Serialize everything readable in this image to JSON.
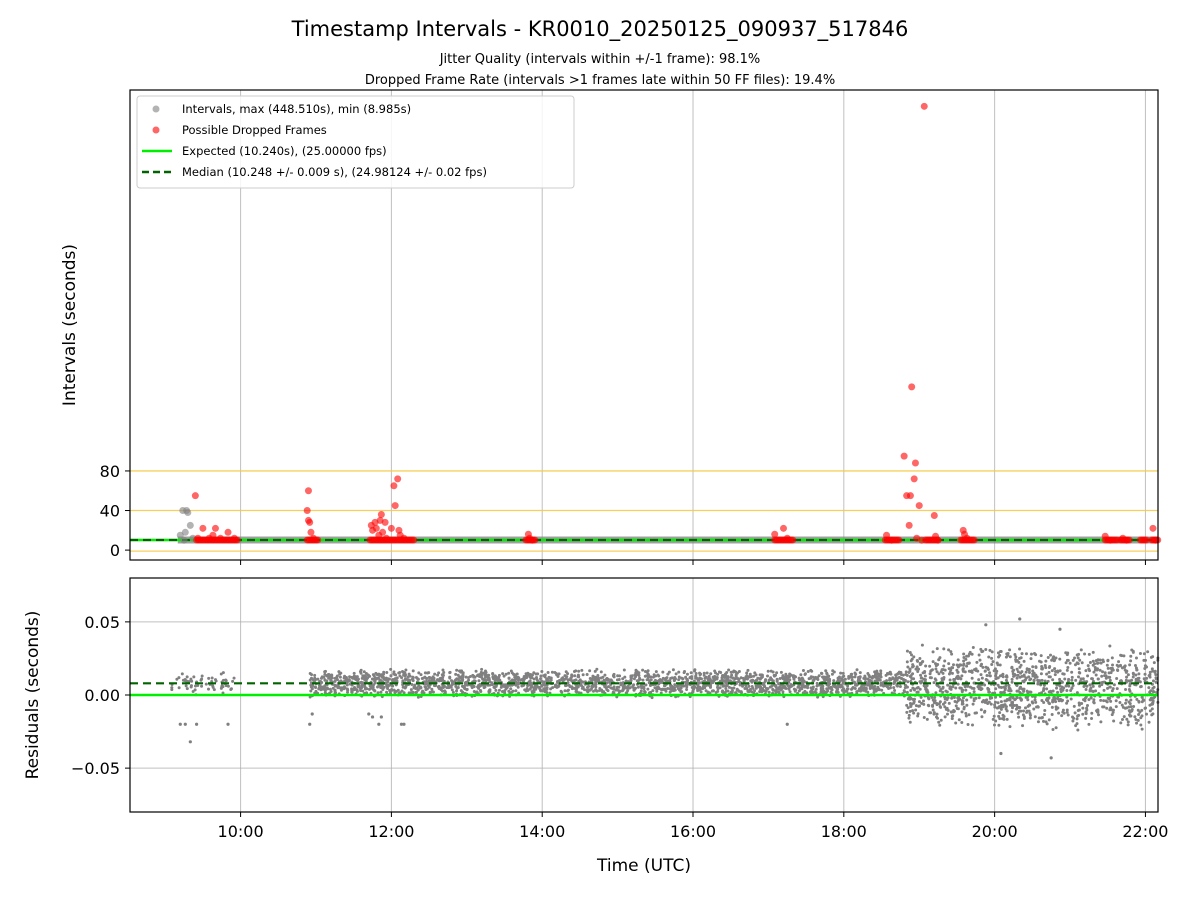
{
  "chart_data": {
    "type": "scatter",
    "title": "Timestamp Intervals - KR0010_20250125_090937_517846",
    "subtitle_lines": [
      "Jitter Quality (intervals within +/-1 frame): 98.1%",
      "Dropped Frame Rate (intervals >1 frames late within 50 FF files): 19.4%"
    ],
    "xlabel": "Time (UTC)",
    "xlim": [
      "08:32",
      "22:10"
    ],
    "xticks": [
      "10:00",
      "12:00",
      "14:00",
      "16:00",
      "18:00",
      "20:00",
      "22:00"
    ],
    "colors": {
      "intervals": "#808080",
      "dropped": "#ff0000",
      "expected": "#00ee00",
      "median": "#006400",
      "threshold": "#f5c842",
      "grid": "#b0b0b0"
    },
    "panels": [
      {
        "id": "intervals",
        "ylabel": "Intervals (seconds)",
        "ylim": [
          -10,
          465
        ],
        "yticks": [
          "0",
          "40",
          "80"
        ],
        "threshold_lines_y": [
          -1,
          40,
          80
        ],
        "expected_y": 10.24,
        "median_y": 10.248,
        "legend_position": "upper-left",
        "legend": [
          {
            "label": "Intervals, max (448.510s), min (8.985s)",
            "marker": "gray-dot"
          },
          {
            "label": "Possible Dropped Frames",
            "marker": "red-dot"
          },
          {
            "label": "Expected (10.240s), (25.00000 fps)",
            "marker": "green-line"
          },
          {
            "label": "Median (10.248 +/- 0.009 s), (24.98124 +/- 0.02 fps)",
            "marker": "dark-green-dashed"
          }
        ],
        "series": [
          {
            "name": "Intervals, max (448.510s), min (8.985s)",
            "points": [
              [
                "09:12",
                15
              ],
              [
                "09:14",
                40
              ],
              [
                "09:15",
                10
              ],
              [
                "09:16",
                18
              ],
              [
                "09:17",
                40
              ],
              [
                "09:18",
                38
              ],
              [
                "09:20",
                25
              ],
              [
                "09:22",
                12
              ]
            ],
            "baseline_segments": [
              [
                "09:10",
                "22:10",
                10.24
              ]
            ]
          },
          {
            "name": "Possible Dropped Frames",
            "points": [
              [
                "09:24",
                55
              ],
              [
                "09:26",
                12
              ],
              [
                "09:30",
                22
              ],
              [
                "09:35",
                12
              ],
              [
                "09:38",
                15
              ],
              [
                "09:40",
                22
              ],
              [
                "09:44",
                12
              ],
              [
                "09:50",
                18
              ],
              [
                "09:55",
                12
              ],
              [
                "10:54",
                60
              ],
              [
                "10:53",
                40
              ],
              [
                "10:54",
                30
              ],
              [
                "10:55",
                28
              ],
              [
                "10:56",
                18
              ],
              [
                "10:58",
                12
              ],
              [
                "11:44",
                25
              ],
              [
                "11:45",
                20
              ],
              [
                "11:47",
                28
              ],
              [
                "11:48",
                22
              ],
              [
                "11:50",
                15
              ],
              [
                "11:51",
                30
              ],
              [
                "11:52",
                36
              ],
              [
                "11:53",
                18
              ],
              [
                "11:55",
                28
              ],
              [
                "11:56",
                12
              ],
              [
                "12:00",
                22
              ],
              [
                "12:02",
                65
              ],
              [
                "12:03",
                45
              ],
              [
                "12:05",
                72
              ],
              [
                "12:06",
                20
              ],
              [
                "12:07",
                15
              ],
              [
                "12:10",
                12
              ],
              [
                "13:49",
                16
              ],
              [
                "13:50",
                12
              ],
              [
                "13:52",
                10
              ],
              [
                "17:05",
                16
              ],
              [
                "17:12",
                22
              ],
              [
                "17:15",
                12
              ],
              [
                "18:34",
                15
              ],
              [
                "18:38",
                10
              ],
              [
                "18:48",
                95
              ],
              [
                "18:50",
                55
              ],
              [
                "18:52",
                25
              ],
              [
                "18:53",
                55
              ],
              [
                "18:54",
                165
              ],
              [
                "18:56",
                72
              ],
              [
                "18:57",
                88
              ],
              [
                "18:58",
                12
              ],
              [
                "19:00",
                45
              ],
              [
                "19:02",
                10
              ],
              [
                "19:04",
                448.51
              ],
              [
                "19:12",
                35
              ],
              [
                "19:13",
                14
              ],
              [
                "19:15",
                10
              ],
              [
                "19:35",
                20
              ],
              [
                "19:36",
                16
              ],
              [
                "19:38",
                12
              ],
              [
                "21:28",
                14
              ],
              [
                "21:32",
                10
              ],
              [
                "21:42",
                12
              ],
              [
                "21:45",
                10
              ],
              [
                "22:06",
                22
              ],
              [
                "22:08",
                10
              ]
            ],
            "clusters": [
              [
                "09:25",
                "09:58"
              ],
              [
                "10:53",
                "11:02"
              ],
              [
                "11:43",
                "12:18"
              ],
              [
                "13:47",
                "13:55"
              ],
              [
                "17:05",
                "17:20"
              ],
              [
                "18:33",
                "18:45"
              ],
              [
                "19:05",
                "19:15"
              ],
              [
                "19:33",
                "19:45"
              ],
              [
                "21:28",
                "21:38"
              ],
              [
                "21:40",
                "21:48"
              ],
              [
                "21:56",
                "22:02"
              ],
              [
                "22:05",
                "22:10"
              ]
            ]
          }
        ]
      },
      {
        "id": "residuals",
        "ylabel": "Residuals (seconds)",
        "ylim": [
          -0.08,
          0.08
        ],
        "yticks": [
          "−0.05",
          "0.00",
          "0.05"
        ],
        "ytick_values": [
          -0.05,
          0.0,
          0.05
        ],
        "expected_y": 0.0,
        "median_y": 0.008,
        "scatter_description": "gray points; sparse 09:05-09:55, dense band 0.00-0.02 from 10:55-18:50, wider spread -0.02 to 0.04 from 18:50-22:10",
        "segments": [
          {
            "start": "09:05",
            "end": "09:55",
            "low": -0.002,
            "high": 0.018,
            "density": 60
          },
          {
            "start": "10:55",
            "end": "18:50",
            "low": -0.002,
            "high": 0.018,
            "density": 2200
          },
          {
            "start": "18:50",
            "end": "22:10",
            "low": -0.025,
            "high": 0.035,
            "density": 1200
          }
        ],
        "outliers": [
          [
            "09:12",
            -0.02
          ],
          [
            "09:16",
            -0.02
          ],
          [
            "09:20",
            -0.032
          ],
          [
            "09:25",
            -0.02
          ],
          [
            "09:50",
            -0.02
          ],
          [
            "10:55",
            -0.02
          ],
          [
            "10:57",
            -0.013
          ],
          [
            "11:42",
            -0.013
          ],
          [
            "11:45",
            -0.015
          ],
          [
            "11:50",
            -0.02
          ],
          [
            "11:52",
            -0.015
          ],
          [
            "12:08",
            -0.02
          ],
          [
            "12:10",
            -0.02
          ],
          [
            "17:15",
            -0.02
          ],
          [
            "19:53",
            0.048
          ],
          [
            "20:05",
            -0.04
          ],
          [
            "20:20",
            0.052
          ],
          [
            "20:45",
            -0.043
          ],
          [
            "20:52",
            0.045
          ]
        ]
      }
    ]
  }
}
